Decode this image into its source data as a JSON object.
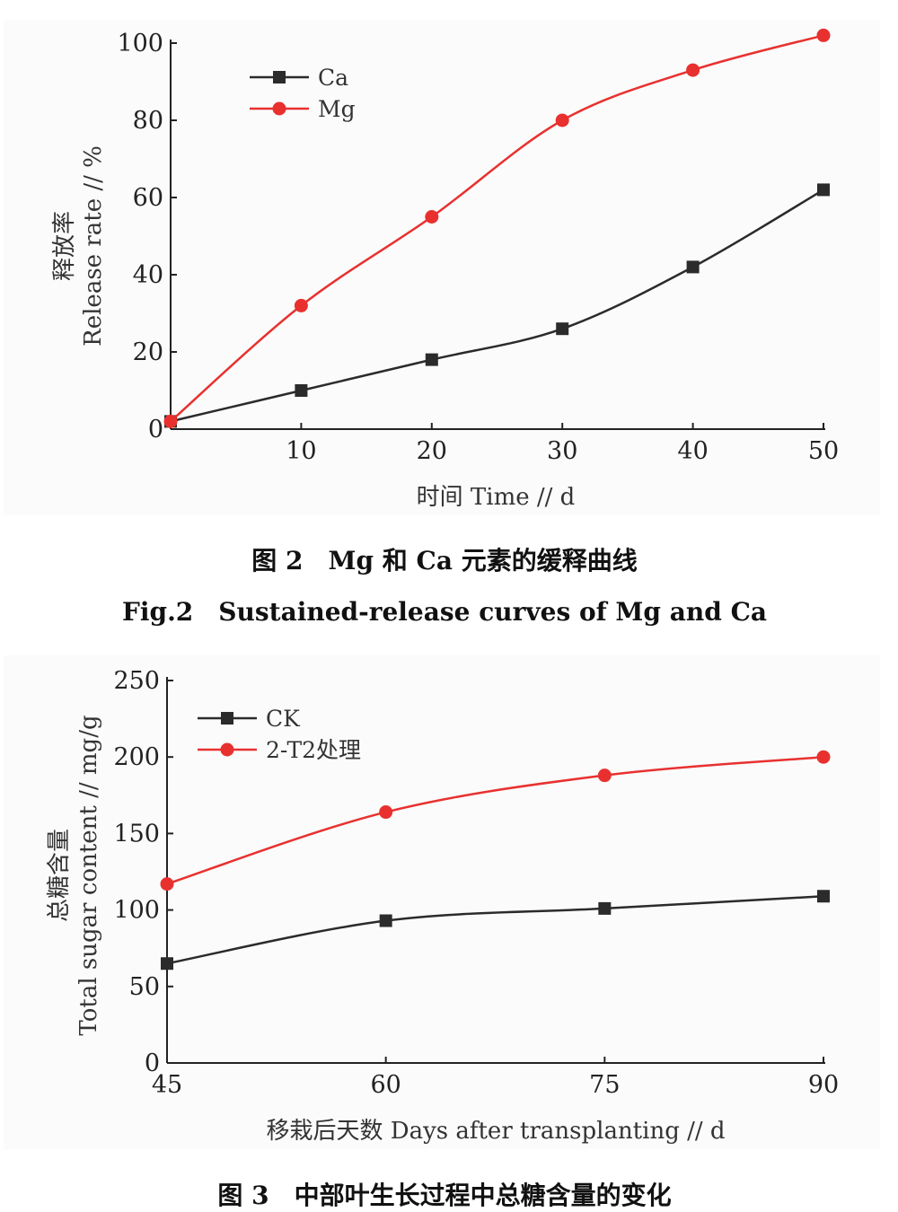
{
  "chart_data": [
    {
      "type": "line",
      "caption_zh": "图 2　Mg 和 Ca 元素的缓释曲线",
      "caption_en": "Fig.2　Sustained-release curves of Mg and Ca",
      "ylabel_zh": "释放率",
      "ylabel_en": "Release rate // %",
      "xlabel": "时间 Time // d",
      "ylim": [
        0,
        100
      ],
      "xlim": [
        0,
        50
      ],
      "yticks": [
        "0",
        "20",
        "40",
        "60",
        "80",
        "100"
      ],
      "xticks": [
        "10",
        "20",
        "30",
        "40",
        "50"
      ],
      "legend_position": "top-left",
      "series": [
        {
          "name": "Ca",
          "color": "#2b2b2b",
          "marker": "square",
          "x": [
            0,
            10,
            20,
            30,
            40,
            50
          ],
          "y": [
            2,
            10,
            18,
            26,
            42,
            62
          ]
        },
        {
          "name": "Mg",
          "color": "#e8312f",
          "marker": "circle",
          "x": [
            0,
            10,
            20,
            30,
            40,
            50
          ],
          "y": [
            2,
            32,
            55,
            80,
            93,
            102
          ]
        }
      ]
    },
    {
      "type": "line",
      "caption_zh": "图 3　中部叶生长过程中总糖含量的变化",
      "ylabel_zh": "总糖含量",
      "ylabel_en": "Total sugar content // mg/g",
      "xlabel": "移栽后天数 Days after transplanting // d",
      "ylim": [
        0,
        250
      ],
      "xlim": [
        45,
        90
      ],
      "yticks": [
        "0",
        "50",
        "100",
        "150",
        "200",
        "250"
      ],
      "xticks": [
        "45",
        "60",
        "75",
        "90"
      ],
      "legend_position": "top-left",
      "series": [
        {
          "name": "CK",
          "color": "#2b2b2b",
          "marker": "square",
          "x": [
            45,
            60,
            75,
            90
          ],
          "y": [
            65,
            93,
            101,
            109
          ]
        },
        {
          "name": "2-T2处理",
          "color": "#e8312f",
          "marker": "circle",
          "x": [
            45,
            60,
            75,
            90
          ],
          "y": [
            117,
            164,
            188,
            200
          ]
        }
      ]
    }
  ]
}
